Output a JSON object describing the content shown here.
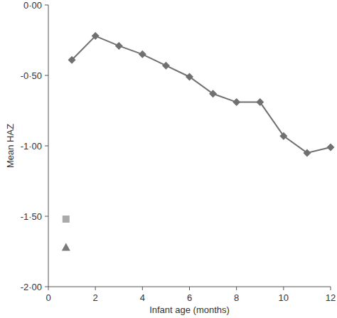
{
  "chart_data": {
    "type": "line",
    "x_label": "Infant age (months)",
    "y_label": "Mean HAZ",
    "xlim": [
      0,
      12
    ],
    "xticks": [
      0,
      2,
      4,
      6,
      8,
      10,
      12
    ],
    "ylim": [
      -2,
      0
    ],
    "yticks": [
      {
        "value": 0,
        "label": "0·00"
      },
      {
        "value": -0.5,
        "label": "-0·50"
      },
      {
        "value": -1,
        "label": "-1·00"
      },
      {
        "value": -1.5,
        "label": "-1·50"
      },
      {
        "value": -2,
        "label": "-2·00"
      }
    ],
    "grid": false,
    "series": [
      {
        "type": "line",
        "marker": "diamond",
        "color": "#707070",
        "x": [
          1,
          2,
          3,
          4,
          5,
          6,
          7,
          8,
          9,
          10,
          11,
          12
        ],
        "values": [
          -0.39,
          -0.22,
          -0.29,
          -0.35,
          -0.43,
          -0.51,
          -0.63,
          -0.69,
          -0.69,
          -0.93,
          -1.05,
          -1.01
        ]
      },
      {
        "type": "scatter",
        "marker": "square",
        "color": "#aaaaaa",
        "x": [
          0.75
        ],
        "values": [
          -1.52
        ]
      },
      {
        "type": "scatter",
        "marker": "triangle",
        "color": "#7a7a7a",
        "x": [
          0.75
        ],
        "values": [
          -1.72
        ]
      }
    ]
  }
}
